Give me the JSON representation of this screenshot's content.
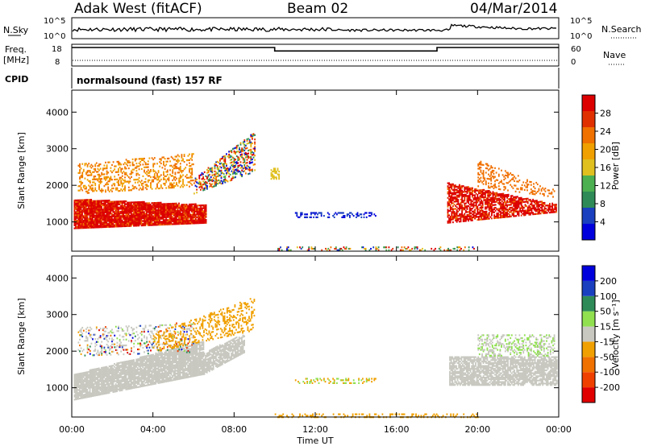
{
  "header": {
    "station": "Adak West (fitACF)",
    "beam": "Beam 02",
    "date": "04/Mar/2014"
  },
  "status_panels": {
    "nsky_label": "N.Sky",
    "nsky_ticks": [
      "10^5",
      "10^0"
    ],
    "nsearch_label": "N.Search",
    "nsearch_ticks": [
      "10^5",
      "10^0"
    ],
    "freq_label": "Freq.",
    "freq_unit": "[MHz]",
    "freq_ticks": [
      "18",
      "8"
    ],
    "nave_label": "Nave",
    "nave_ticks": [
      "60",
      "0"
    ],
    "cpid_label": "CPID",
    "cpid_value": "normalsound (fast) 157 RF"
  },
  "colors": {
    "power_scale": [
      "#0000dd",
      "#1a3fbf",
      "#2e8b57",
      "#4caf50",
      "#e0c020",
      "#f0a000",
      "#f07000",
      "#e03000",
      "#dd0000"
    ],
    "velocity_scale": [
      "#e00000",
      "#f04000",
      "#f07000",
      "#f0a000",
      "#c8c8c0",
      "#90e050",
      "#2e8b57",
      "#1a3fbf",
      "#0000dd"
    ],
    "ground_scatter": "#c8c8c0"
  },
  "chart_data": [
    {
      "type": "heatmap",
      "name": "power",
      "ylabel": "Slant Range [km]",
      "y_ticks": [
        "1000",
        "2000",
        "3000",
        "4000"
      ],
      "ylim": [
        200,
        4600
      ],
      "colorbar_label": "Power [dB]",
      "colorbar_ticks": [
        "4",
        "8",
        "12",
        "16",
        "20",
        "24",
        "28"
      ],
      "colorbar_range": [
        0,
        30
      ]
    },
    {
      "type": "heatmap",
      "name": "velocity",
      "ylabel": "Slant Range [km]",
      "y_ticks": [
        "1000",
        "2000",
        "3000",
        "4000"
      ],
      "ylim": [
        200,
        4600
      ],
      "colorbar_label": "Velocity [m s⁻¹]",
      "colorbar_ticks": [
        "-200",
        "-100",
        "-50",
        "-15",
        "15",
        "50",
        "100",
        "200"
      ],
      "xlabel": "Time UT",
      "x_ticks": [
        "00:00",
        "04:00",
        "08:00",
        "12:00",
        "16:00",
        "20:00",
        "00:00"
      ],
      "xlim": [
        0,
        24
      ]
    },
    {
      "type": "line",
      "name": "frequency",
      "x_hours": [
        0,
        10,
        10,
        18,
        18,
        24
      ],
      "y_mhz": [
        16.8,
        16.8,
        14.4,
        14.4,
        16.8,
        16.8
      ]
    }
  ]
}
